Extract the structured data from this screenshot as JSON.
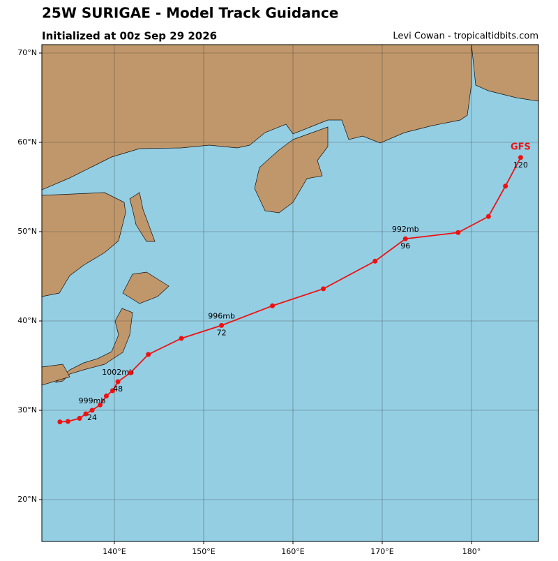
{
  "chart_data": {
    "type": "track",
    "title": "25W SURIGAE - Model Track Guidance",
    "subtitle": "Initialized at 00z Sep 29 2026",
    "credit": "Levi Cowan - tropicaltidbits.com",
    "xlim": [
      131.875,
      187.5
    ],
    "ylim": [
      15.3125,
      70.9375
    ],
    "xticks": [
      {
        "value": 140,
        "label": "140°E"
      },
      {
        "value": 150,
        "label": "150°E"
      },
      {
        "value": 160,
        "label": "160°E"
      },
      {
        "value": 170,
        "label": "170°E"
      },
      {
        "value": 180,
        "label": "180°"
      }
    ],
    "yticks": [
      {
        "value": 20,
        "label": "20°N"
      },
      {
        "value": 30,
        "label": "30°N"
      },
      {
        "value": 40,
        "label": "40°N"
      },
      {
        "value": 50,
        "label": "50°N"
      },
      {
        "value": 60,
        "label": "60°N"
      },
      {
        "value": 70,
        "label": "70°N"
      }
    ],
    "grid": true,
    "series": [
      {
        "name": "GFS",
        "color": "#ee1111",
        "x": [
          133.9,
          134.8,
          136.1,
          136.8,
          137.5,
          138.4,
          139.1,
          139.8,
          140.4,
          141.8,
          143.8,
          147.5,
          152.0,
          157.7,
          163.4,
          169.2,
          172.6,
          178.5,
          181.9,
          183.8,
          185.5
        ],
        "values": [
          28.7,
          28.75,
          29.1,
          29.6,
          30.0,
          30.6,
          31.6,
          32.2,
          33.2,
          34.2,
          36.25,
          38.05,
          39.5,
          41.7,
          43.6,
          46.7,
          49.2,
          49.9,
          51.7,
          55.1,
          58.3
        ],
        "hour_labels": [
          null,
          null,
          null,
          null,
          24,
          null,
          null,
          null,
          48,
          null,
          null,
          null,
          72,
          null,
          null,
          null,
          96,
          null,
          null,
          null,
          120
        ],
        "pressure_labels": [
          null,
          null,
          null,
          null,
          "999mb",
          null,
          null,
          null,
          "1002mb",
          null,
          null,
          null,
          "996mb",
          null,
          null,
          null,
          "992mb",
          null,
          null,
          null,
          null
        ]
      }
    ]
  }
}
